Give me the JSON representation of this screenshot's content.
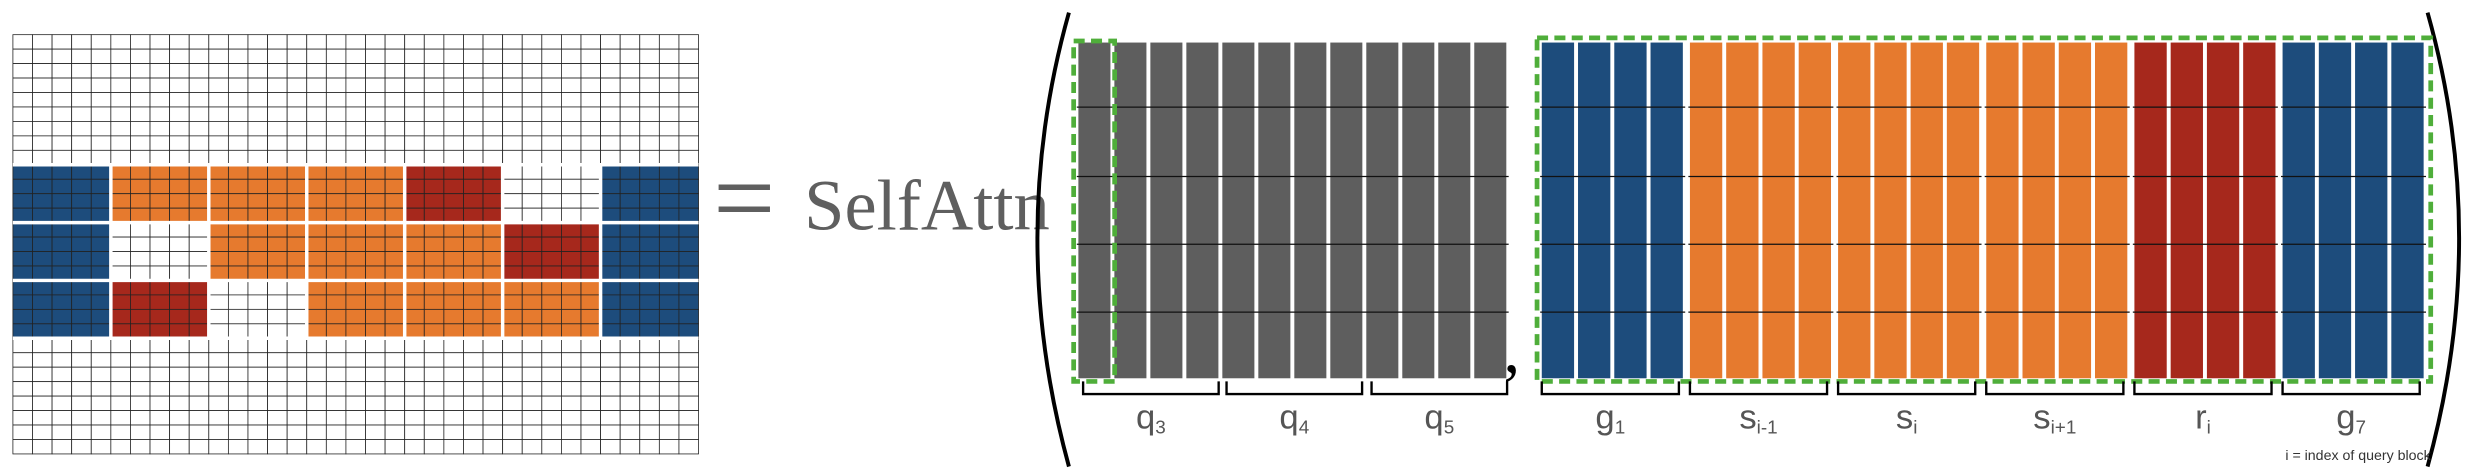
{
  "equals": "=",
  "operator": "SelfAttn",
  "separator": ",",
  "labels": [
    {
      "base": "q",
      "sub": "3"
    },
    {
      "base": "q",
      "sub": "4"
    },
    {
      "base": "q",
      "sub": "5"
    },
    {
      "base": "g",
      "sub": "1"
    },
    {
      "base": "s",
      "sub": "i-1"
    },
    {
      "base": "s",
      "sub": "i"
    },
    {
      "base": "s",
      "sub": "i+1"
    },
    {
      "base": "r",
      "sub": "i"
    },
    {
      "base": "g",
      "sub": "7"
    }
  ],
  "footnote": "i = index of query block"
}
